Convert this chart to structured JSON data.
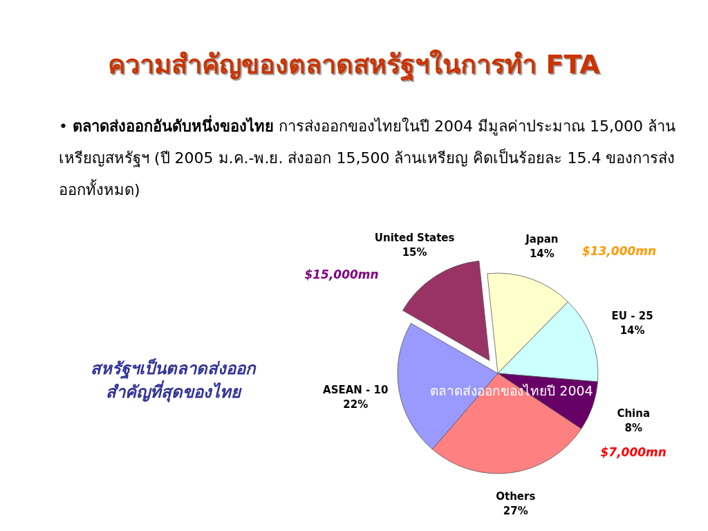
{
  "chart_data": {
    "type": "pie",
    "title": "ความสำคัญของตลาดสหรัฐฯในการทำ FTA",
    "subtitle": "• **ตลาดส่งออกอันดับหนึ่งของไทย** การส่งออกของไทยในปี 2004 มีมูลค่าประมาณ 15,000 ล้านเหรียญสหรัฐฯ (ปี 2005 ม.ค.-พ.ย. ส่งออก 15,500 ล้านเหรียญ คิดเป็นร้อยละ 15.4 ของการส่งออกทั้งหมด)",
    "categories": [
      "United States",
      "Japan",
      "EU - 25",
      "China",
      "Others",
      "ASEAN - 10"
    ],
    "values": [
      15,
      14,
      14,
      8,
      27,
      22
    ],
    "colors": [
      "#993366",
      "#ffffcc",
      "#ccffff",
      "#660066",
      "#ff8080",
      "#9999ff"
    ],
    "value_labels": [
      "15%",
      "14%",
      "14%",
      "8%",
      "27%",
      "22%"
    ],
    "annotations": [
      "สหรัฐฯเป็นตลาดส่งออก\nสำคัญที่สุดของไทย",
      "ตลาดส่งออกของไทยปี 2004",
      {
        "text": "$15,000mn",
        "x": "United States"
      },
      {
        "text": "$13,000mn",
        "x": "Japan"
      },
      {
        "text": "$7,000mn",
        "x": "China"
      }
    ]
  }
}
